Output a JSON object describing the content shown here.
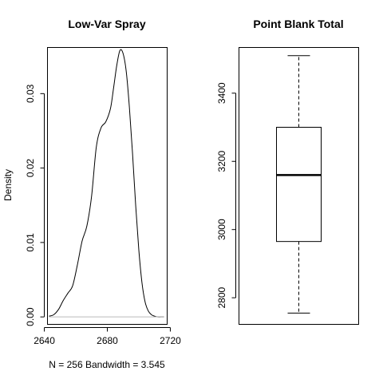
{
  "chart_data": [
    {
      "type": "line",
      "title": "Low-Var Spray",
      "xlabel": "N = 256   Bandwidth = 3.545",
      "ylabel": "Density",
      "n": "256",
      "bandwidth": "3.545",
      "xlim": [
        2642,
        2718
      ],
      "ylim": [
        -0.001,
        0.0362
      ],
      "x_ticks": [
        2640,
        2680,
        2720
      ],
      "x_tick_labels": [
        "2640",
        "2680",
        "2720"
      ],
      "y_ticks": [
        0.0,
        0.01,
        0.02,
        0.03
      ],
      "y_tick_labels": [
        "0.00",
        "0.01",
        "0.02",
        "0.03"
      ],
      "series": [
        {
          "name": "density",
          "x": [
            2643,
            2646,
            2649,
            2652,
            2655,
            2658,
            2661,
            2664,
            2667,
            2670,
            2673,
            2676,
            2679,
            2682,
            2684,
            2686,
            2688,
            2690,
            2692,
            2694,
            2696,
            2698,
            2700,
            2702,
            2704,
            2706,
            2708,
            2710,
            2712,
            2714,
            2716
          ],
          "y": [
            0.0001,
            0.0003,
            0.001,
            0.0022,
            0.0032,
            0.0042,
            0.007,
            0.0102,
            0.0122,
            0.0162,
            0.0228,
            0.0254,
            0.0262,
            0.028,
            0.0308,
            0.0338,
            0.0358,
            0.0354,
            0.033,
            0.0282,
            0.022,
            0.015,
            0.009,
            0.0046,
            0.002,
            0.0008,
            0.0003,
            0.0001,
            0.0,
            0.0,
            0.0
          ]
        }
      ]
    },
    {
      "type": "box",
      "title": "Point Blank Total",
      "ylim": [
        2722,
        3534
      ],
      "y_ticks": [
        2800,
        3000,
        3200,
        3400
      ],
      "y_tick_labels": [
        "2800",
        "3000",
        "3200",
        "3400"
      ],
      "min": 2755,
      "q1": 2965,
      "median": 3160,
      "q3": 3300,
      "max": 3510
    }
  ]
}
